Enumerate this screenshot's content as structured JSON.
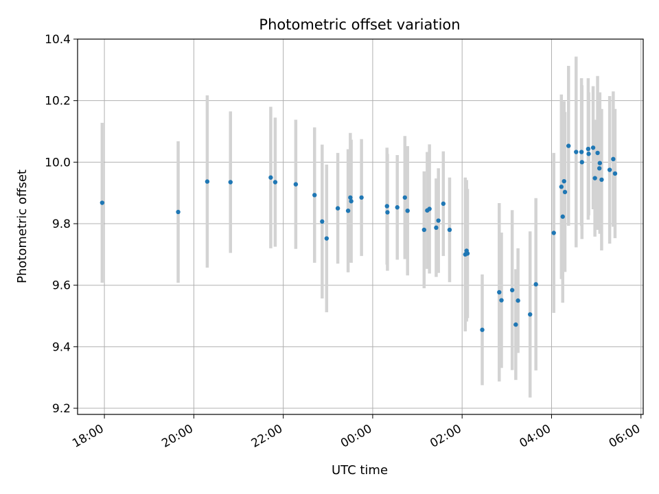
{
  "chart_data": {
    "type": "scatter",
    "title": "Photometric offset variation",
    "xlabel": "UTC time",
    "ylabel": "Photometric offset",
    "x_ticks": [
      "18:00",
      "20:00",
      "22:00",
      "00:00",
      "02:00",
      "04:00",
      "06:00"
    ],
    "y_ticks": [
      "9.2",
      "9.4",
      "9.6",
      "9.8",
      "10.0",
      "10.2",
      "10.4"
    ],
    "xlim": [
      17.4,
      30.05
    ],
    "ylim": [
      9.18,
      10.4
    ],
    "grid": true,
    "colors": {
      "points": "#1f77b4",
      "errorbars": "#d3d3d3",
      "grid": "#b0b0b0"
    },
    "series": [
      {
        "x": [
          17.95,
          19.65,
          20.3,
          20.82,
          21.72,
          21.82,
          22.28,
          22.7,
          22.87,
          22.97,
          23.22,
          23.45,
          23.5,
          23.52,
          23.75,
          24.32,
          24.33,
          24.55,
          24.72,
          24.78,
          25.15,
          25.22,
          25.27,
          25.42,
          25.47,
          25.58,
          25.72,
          26.07,
          26.1,
          26.12,
          26.45,
          26.83,
          26.88,
          27.12,
          27.2,
          27.25,
          27.52,
          27.65,
          28.05,
          28.22,
          28.25,
          28.28,
          28.3,
          28.38,
          28.55,
          28.67,
          28.68,
          28.82,
          28.83,
          28.93,
          28.97,
          29.03,
          29.07,
          29.08,
          29.12,
          29.3,
          29.38,
          29.42
        ],
        "y": [
          9.868,
          9.838,
          9.937,
          9.935,
          9.95,
          9.935,
          9.928,
          9.893,
          9.807,
          9.752,
          9.85,
          9.842,
          9.885,
          9.873,
          9.885,
          9.857,
          9.837,
          9.853,
          9.885,
          9.842,
          9.78,
          9.843,
          9.848,
          9.787,
          9.81,
          9.865,
          9.78,
          9.7,
          9.712,
          9.703,
          9.455,
          9.577,
          9.551,
          9.584,
          9.472,
          9.55,
          9.505,
          9.603,
          9.77,
          9.92,
          9.823,
          9.938,
          9.903,
          10.053,
          10.033,
          10.033,
          10.0,
          10.043,
          10.027,
          10.047,
          9.948,
          10.03,
          9.98,
          9.997,
          9.943,
          9.975,
          10.01,
          9.963
        ],
        "yerr": [
          0.26,
          0.23,
          0.28,
          0.23,
          0.23,
          0.21,
          0.21,
          0.22,
          0.25,
          0.24,
          0.18,
          0.2,
          0.21,
          0.2,
          0.19,
          0.19,
          0.19,
          0.17,
          0.2,
          0.21,
          0.19,
          0.19,
          0.21,
          0.16,
          0.17,
          0.17,
          0.17,
          0.25,
          0.23,
          0.21,
          0.18,
          0.29,
          0.22,
          0.26,
          0.18,
          0.17,
          0.27,
          0.28,
          0.26,
          0.3,
          0.28,
          0.26,
          0.26,
          0.26,
          0.31,
          0.24,
          0.25,
          0.23,
          0.2,
          0.2,
          0.19,
          0.25,
          0.2,
          0.23,
          0.23,
          0.24,
          0.22,
          0.21
        ]
      }
    ]
  }
}
